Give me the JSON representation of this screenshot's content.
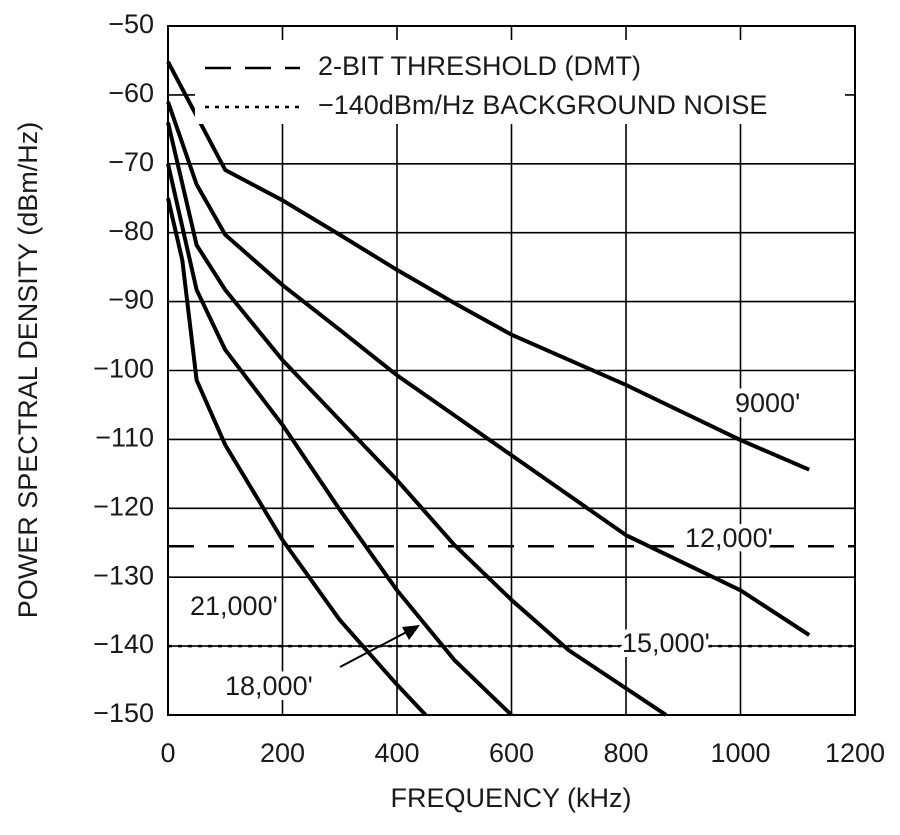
{
  "chart_data": {
    "type": "line",
    "xlabel": "FREQUENCY (kHz)",
    "ylabel": "POWER SPECTRAL DENSITY (dBm/Hz)",
    "xlim": [
      0,
      1200
    ],
    "xticks": [
      0,
      200,
      400,
      600,
      800,
      1000,
      1200
    ],
    "ylim": [
      -150,
      -50
    ],
    "yticks": [
      {
        "value": -50,
        "label": "−50"
      },
      {
        "value": -60,
        "label": "−60"
      },
      {
        "value": -70,
        "label": "−70"
      },
      {
        "value": -80,
        "label": "−80"
      },
      {
        "value": -90,
        "label": "−90"
      },
      {
        "value": -100,
        "label": "−100"
      },
      {
        "value": -110,
        "label": "−110"
      },
      {
        "value": -120,
        "label": "−120"
      },
      {
        "value": -130,
        "label": "−130"
      },
      {
        "value": -140,
        "label": "−140"
      },
      {
        "value": -150,
        "label": "−150"
      }
    ],
    "grid": true,
    "series": [
      {
        "name": "9000'",
        "color": "#000000",
        "x": [
          0,
          100,
          200,
          300,
          400,
          500,
          600,
          800,
          1000,
          1120
        ],
        "values": [
          -55.2,
          -70.9,
          -75.3,
          -80.3,
          -85.4,
          -90.2,
          -94.8,
          -102.1,
          -110.1,
          -114.4
        ]
      },
      {
        "name": "12,000'",
        "color": "#000000",
        "x": [
          0,
          50,
          100,
          200,
          300,
          400,
          500,
          600,
          800,
          1000,
          1120
        ],
        "values": [
          -61,
          -73,
          -80.3,
          -87.6,
          -94.1,
          -100.7,
          -106.5,
          -112.3,
          -123.9,
          -131.9,
          -138.4
        ]
      },
      {
        "name": "15,000'",
        "color": "#000000",
        "x": [
          0,
          50,
          100,
          200,
          300,
          400,
          500,
          600,
          700,
          870
        ],
        "values": [
          -64,
          -81.8,
          -88.3,
          -98.5,
          -107.2,
          -115.9,
          -125.3,
          -133.3,
          -140.6,
          -150
        ]
      },
      {
        "name": "18,000'",
        "color": "#000000",
        "x": [
          0,
          50,
          100,
          200,
          300,
          400,
          500,
          600
        ],
        "values": [
          -70,
          -88.3,
          -97,
          -107.9,
          -120.2,
          -131.9,
          -142,
          -150
        ]
      },
      {
        "name": "21,000'",
        "color": "#000000",
        "x": [
          0,
          25,
          50,
          100,
          200,
          300,
          400,
          450
        ],
        "values": [
          -75,
          -84,
          -101.4,
          -110.8,
          -124.6,
          -136.2,
          -145.6,
          -150
        ]
      }
    ],
    "reference_lines": [
      {
        "name": "2-BIT THRESHOLD (DMT)",
        "value": -125.5,
        "style": "dashed"
      },
      {
        "name": "−140dBm/Hz BACKGROUND NOISE",
        "value": -140,
        "style": "dotted"
      }
    ]
  }
}
